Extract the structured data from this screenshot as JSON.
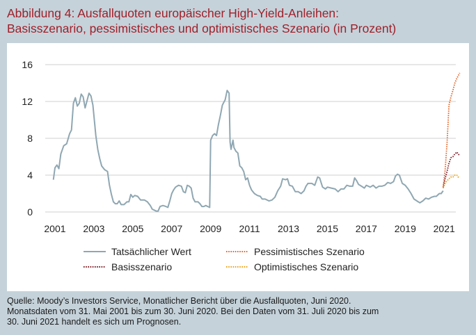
{
  "header": {
    "title_line1": "Abbildung 4: Ausfallquoten europäischer High-Yield-Anleihen:",
    "title_line2": "Basisszenario, pessimistisches und optimistisches Szenario (in Prozent)"
  },
  "footer": {
    "source_line1": "Quelle: Moody’s Investors Service, Monatlicher Bericht über die Ausfallquoten, Juni 2020.",
    "source_line2": "Monatsdaten vom 31. Mai 2001 bis zum 30. Juni 2020. Bei den Daten vom 31. Juli 2020 bis zum",
    "source_line3": "30. Juni 2021 handelt es sich um Prognosen."
  },
  "chart_data": {
    "type": "line",
    "title": "Abbildung 4: Ausfallquoten europäischer High-Yield-Anleihen: Basisszenario, pessimistisches und optimistisches Szenario (in Prozent)",
    "xlabel": "",
    "ylabel": "",
    "xlim": [
      2000.5,
      2021.6
    ],
    "ylim": [
      0,
      16
    ],
    "yticks": [
      0,
      4,
      8,
      12,
      16
    ],
    "xticks": [
      2001,
      2003,
      2005,
      2007,
      2009,
      2011,
      2013,
      2015,
      2017,
      2019,
      2021
    ],
    "grid": "horizontal",
    "legend_position": "bottom",
    "colors": {
      "actual": "#8fa7b2",
      "base": "#7a1a22",
      "pessimistic": "#e0662a",
      "optimistic": "#e8a21a"
    },
    "series": [
      {
        "name": "Tatsächlicher Wert",
        "style": "solid",
        "color_key": "actual",
        "points": [
          [
            2000.92,
            3.5
          ],
          [
            2001.0,
            4.8
          ],
          [
            2001.1,
            5.1
          ],
          [
            2001.2,
            4.7
          ],
          [
            2001.3,
            6.3
          ],
          [
            2001.45,
            7.2
          ],
          [
            2001.6,
            7.4
          ],
          [
            2001.75,
            8.5
          ],
          [
            2001.85,
            8.9
          ],
          [
            2001.95,
            11.8
          ],
          [
            2002.05,
            12.4
          ],
          [
            2002.15,
            11.5
          ],
          [
            2002.25,
            11.8
          ],
          [
            2002.35,
            12.8
          ],
          [
            2002.45,
            12.5
          ],
          [
            2002.55,
            11.3
          ],
          [
            2002.65,
            12.1
          ],
          [
            2002.75,
            12.9
          ],
          [
            2002.85,
            12.6
          ],
          [
            2002.95,
            11.6
          ],
          [
            2003.0,
            10.5
          ],
          [
            2003.1,
            8.3
          ],
          [
            2003.2,
            6.8
          ],
          [
            2003.3,
            5.8
          ],
          [
            2003.4,
            5.0
          ],
          [
            2003.55,
            4.6
          ],
          [
            2003.7,
            4.4
          ],
          [
            2003.8,
            2.9
          ],
          [
            2003.9,
            1.9
          ],
          [
            2004.0,
            1.1
          ],
          [
            2004.1,
            0.9
          ],
          [
            2004.2,
            0.9
          ],
          [
            2004.3,
            1.2
          ],
          [
            2004.4,
            0.8
          ],
          [
            2004.55,
            0.8
          ],
          [
            2004.7,
            1.1
          ],
          [
            2004.8,
            1.1
          ],
          [
            2004.9,
            1.9
          ],
          [
            2005.0,
            1.6
          ],
          [
            2005.1,
            1.8
          ],
          [
            2005.25,
            1.7
          ],
          [
            2005.4,
            1.3
          ],
          [
            2005.6,
            1.3
          ],
          [
            2005.75,
            1.1
          ],
          [
            2005.9,
            0.7
          ],
          [
            2006.0,
            0.3
          ],
          [
            2006.1,
            0.2
          ],
          [
            2006.2,
            0.1
          ],
          [
            2006.3,
            0.1
          ],
          [
            2006.4,
            0.6
          ],
          [
            2006.55,
            0.7
          ],
          [
            2006.7,
            0.6
          ],
          [
            2006.8,
            0.5
          ],
          [
            2006.9,
            1.2
          ],
          [
            2007.0,
            2.0
          ],
          [
            2007.1,
            2.4
          ],
          [
            2007.2,
            2.7
          ],
          [
            2007.35,
            2.9
          ],
          [
            2007.5,
            2.8
          ],
          [
            2007.6,
            2.2
          ],
          [
            2007.7,
            2.1
          ],
          [
            2007.8,
            2.9
          ],
          [
            2007.9,
            2.8
          ],
          [
            2008.0,
            2.6
          ],
          [
            2008.1,
            1.5
          ],
          [
            2008.2,
            1.1
          ],
          [
            2008.35,
            1.1
          ],
          [
            2008.45,
            0.9
          ],
          [
            2008.55,
            0.6
          ],
          [
            2008.65,
            0.6
          ],
          [
            2008.75,
            0.7
          ],
          [
            2008.85,
            0.6
          ],
          [
            2008.95,
            0.5
          ],
          [
            2009.0,
            7.8
          ],
          [
            2009.1,
            8.3
          ],
          [
            2009.2,
            8.5
          ],
          [
            2009.3,
            8.3
          ],
          [
            2009.4,
            9.5
          ],
          [
            2009.5,
            10.5
          ],
          [
            2009.6,
            11.6
          ],
          [
            2009.75,
            12.2
          ],
          [
            2009.85,
            13.2
          ],
          [
            2009.95,
            12.9
          ],
          [
            2010.0,
            7.6
          ],
          [
            2010.05,
            6.8
          ],
          [
            2010.15,
            7.8
          ],
          [
            2010.2,
            7.0
          ],
          [
            2010.3,
            6.6
          ],
          [
            2010.4,
            6.4
          ],
          [
            2010.5,
            5.0
          ],
          [
            2010.6,
            4.8
          ],
          [
            2010.7,
            4.4
          ],
          [
            2010.8,
            3.5
          ],
          [
            2010.9,
            3.7
          ],
          [
            2011.0,
            2.9
          ],
          [
            2011.1,
            2.4
          ],
          [
            2011.25,
            2.0
          ],
          [
            2011.4,
            1.8
          ],
          [
            2011.55,
            1.7
          ],
          [
            2011.65,
            1.4
          ],
          [
            2011.8,
            1.4
          ],
          [
            2012.0,
            1.2
          ],
          [
            2012.15,
            1.3
          ],
          [
            2012.3,
            1.6
          ],
          [
            2012.45,
            2.3
          ],
          [
            2012.6,
            2.8
          ],
          [
            2012.7,
            3.6
          ],
          [
            2012.85,
            3.5
          ],
          [
            2012.95,
            3.6
          ],
          [
            2013.05,
            2.9
          ],
          [
            2013.2,
            2.8
          ],
          [
            2013.35,
            2.2
          ],
          [
            2013.5,
            2.2
          ],
          [
            2013.65,
            2.0
          ],
          [
            2013.8,
            2.3
          ],
          [
            2013.9,
            2.8
          ],
          [
            2014.0,
            3.1
          ],
          [
            2014.2,
            3.1
          ],
          [
            2014.35,
            2.9
          ],
          [
            2014.5,
            3.8
          ],
          [
            2014.6,
            3.7
          ],
          [
            2014.75,
            2.7
          ],
          [
            2014.9,
            2.5
          ],
          [
            2015.0,
            2.7
          ],
          [
            2015.2,
            2.6
          ],
          [
            2015.4,
            2.5
          ],
          [
            2015.55,
            2.2
          ],
          [
            2015.7,
            2.5
          ],
          [
            2015.85,
            2.5
          ],
          [
            2016.0,
            2.9
          ],
          [
            2016.15,
            2.8
          ],
          [
            2016.3,
            2.8
          ],
          [
            2016.4,
            3.7
          ],
          [
            2016.5,
            3.4
          ],
          [
            2016.6,
            3.0
          ],
          [
            2016.75,
            2.8
          ],
          [
            2016.9,
            2.6
          ],
          [
            2017.0,
            2.9
          ],
          [
            2017.2,
            2.7
          ],
          [
            2017.35,
            2.9
          ],
          [
            2017.5,
            2.6
          ],
          [
            2017.65,
            2.8
          ],
          [
            2017.8,
            2.8
          ],
          [
            2017.95,
            2.9
          ],
          [
            2018.1,
            3.2
          ],
          [
            2018.25,
            3.1
          ],
          [
            2018.4,
            3.3
          ],
          [
            2018.5,
            3.9
          ],
          [
            2018.6,
            4.1
          ],
          [
            2018.7,
            4.0
          ],
          [
            2018.85,
            3.1
          ],
          [
            2019.0,
            2.9
          ],
          [
            2019.15,
            2.5
          ],
          [
            2019.3,
            2.0
          ],
          [
            2019.45,
            1.4
          ],
          [
            2019.6,
            1.2
          ],
          [
            2019.75,
            1.0
          ],
          [
            2019.9,
            1.2
          ],
          [
            2020.05,
            1.5
          ],
          [
            2020.2,
            1.4
          ],
          [
            2020.35,
            1.6
          ],
          [
            2020.5,
            1.7
          ],
          [
            2020.6,
            1.7
          ],
          [
            2020.75,
            2.0
          ],
          [
            2020.85,
            2.0
          ],
          [
            2020.95,
            2.3
          ]
        ]
      },
      {
        "name": "Pessimistisches Szenario",
        "style": "dotted",
        "color_key": "pessimistic",
        "points": [
          [
            2020.95,
            2.7
          ],
          [
            2021.05,
            4.5
          ],
          [
            2021.15,
            7.5
          ],
          [
            2021.25,
            11.6
          ],
          [
            2021.35,
            12.5
          ],
          [
            2021.45,
            13.2
          ],
          [
            2021.55,
            14.0
          ],
          [
            2021.65,
            14.5
          ],
          [
            2021.75,
            14.9
          ],
          [
            2021.8,
            15.1
          ]
        ]
      },
      {
        "name": "Basisszenario",
        "style": "dotted",
        "color_key": "base",
        "points": [
          [
            2020.95,
            2.6
          ],
          [
            2021.05,
            3.6
          ],
          [
            2021.15,
            4.4
          ],
          [
            2021.25,
            5.3
          ],
          [
            2021.35,
            5.9
          ],
          [
            2021.45,
            6.0
          ],
          [
            2021.55,
            6.3
          ],
          [
            2021.65,
            6.5
          ],
          [
            2021.72,
            6.3
          ],
          [
            2021.8,
            6.1
          ]
        ]
      },
      {
        "name": "Optimistisches Szenario",
        "style": "dotted",
        "color_key": "optimistic",
        "points": [
          [
            2020.95,
            2.6
          ],
          [
            2021.05,
            3.1
          ],
          [
            2021.15,
            3.4
          ],
          [
            2021.25,
            3.6
          ],
          [
            2021.35,
            3.8
          ],
          [
            2021.45,
            3.8
          ],
          [
            2021.55,
            4.0
          ],
          [
            2021.65,
            4.0
          ],
          [
            2021.72,
            3.8
          ],
          [
            2021.8,
            3.7
          ]
        ]
      }
    ],
    "legend": [
      {
        "label": "Tatsächlicher Wert",
        "series": 0
      },
      {
        "label": "Pessimistisches Szenario",
        "series": 1
      },
      {
        "label": "Basisszenario",
        "series": 2
      },
      {
        "label": "Optimistisches Szenario",
        "series": 3
      }
    ]
  }
}
